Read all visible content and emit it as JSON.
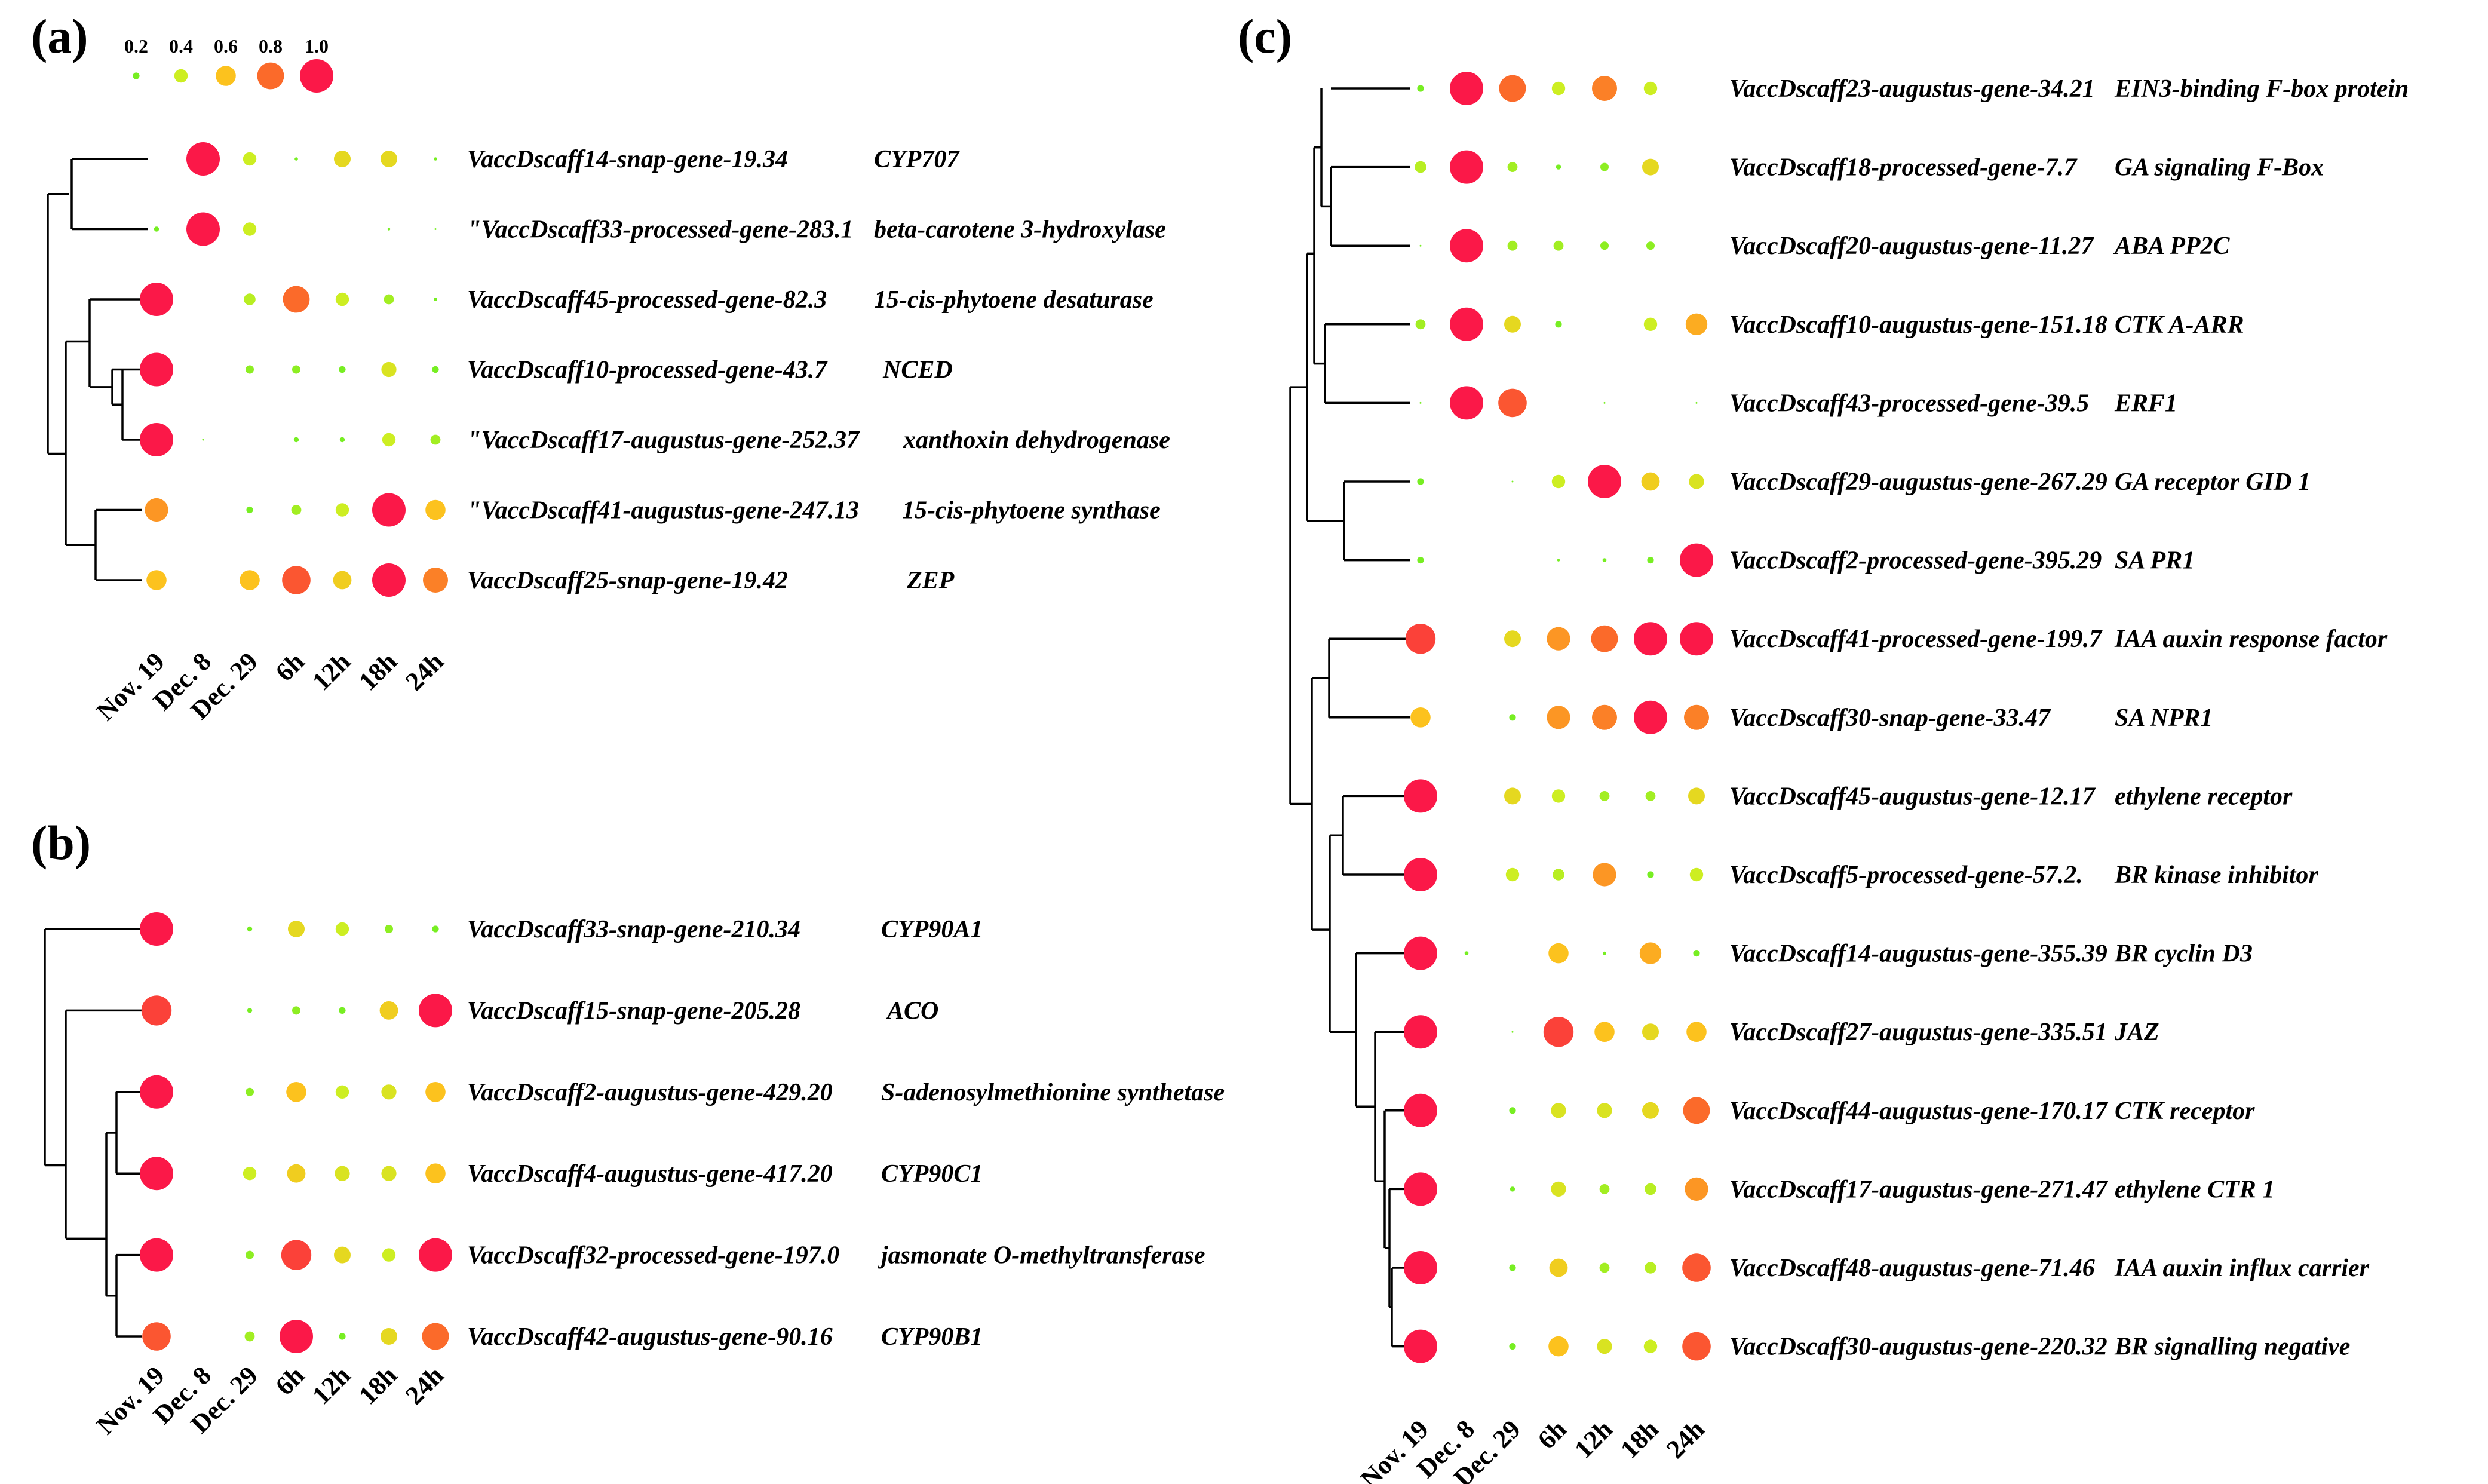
{
  "chart_data": [
    {
      "type": "bubble-heatmap",
      "panel_label": "(a)",
      "columns": [
        "Nov. 19",
        "Dec. 8",
        "Dec. 29",
        "6h",
        "12h",
        "18h",
        "24h"
      ],
      "legend": {
        "values": [
          0.2,
          0.4,
          0.6,
          0.8,
          1.0
        ],
        "labels": [
          "0.2",
          "0.4",
          "0.6",
          "0.8",
          "1.0"
        ]
      },
      "rows": [
        {
          "gene": "VaccDscaff14-snap-gene-19.34",
          "annotation": "CYP707",
          "values": [
            0,
            1.0,
            0.4,
            0.1,
            0.5,
            0.5,
            0.1
          ]
        },
        {
          "gene": "\"VaccDscaff33-processed-gene-283.1",
          "annotation": "beta-carotene 3-hydroxylase",
          "values": [
            0.15,
            1.0,
            0.4,
            0,
            0,
            0.08,
            0.04
          ]
        },
        {
          "gene": "VaccDscaff45-processed-gene-82.3",
          "annotation": "15-cis-phytoene desaturase",
          "values": [
            1.0,
            0,
            0.35,
            0.8,
            0.4,
            0.3,
            0.1
          ]
        },
        {
          "gene": "VaccDscaff10-processed-gene-43.7",
          "annotation": "NCED",
          "values": [
            1.0,
            0,
            0.25,
            0.25,
            0.2,
            0.45,
            0.2
          ]
        },
        {
          "gene": "\"VaccDscaff17-augustus-gene-252.37",
          "annotation": "xanthoxin dehydrogenase",
          "values": [
            1.0,
            0.05,
            0,
            0.15,
            0.15,
            0.4,
            0.3
          ]
        },
        {
          "gene": "\"VaccDscaff41-augustus-gene-247.13",
          "annotation": "15-cis-phytoene synthase",
          "values": [
            0.7,
            0,
            0.2,
            0.3,
            0.4,
            1.0,
            0.6
          ]
        },
        {
          "gene": "VaccDscaff25-snap-gene-19.42",
          "annotation": "ZEP",
          "values": [
            0.6,
            0,
            0.6,
            0.85,
            0.55,
            1.0,
            0.75
          ]
        }
      ]
    },
    {
      "type": "bubble-heatmap",
      "panel_label": "(b)",
      "columns": [
        "Nov. 19",
        "Dec. 8",
        "Dec. 29",
        "6h",
        "12h",
        "18h",
        "24h"
      ],
      "rows": [
        {
          "gene": "VaccDscaff33-snap-gene-210.34",
          "annotation": "CYP90A1",
          "values": [
            1.0,
            0,
            0.15,
            0.5,
            0.4,
            0.25,
            0.2
          ]
        },
        {
          "gene": "VaccDscaff15-snap-gene-205.28",
          "annotation": "ACO",
          "values": [
            0.9,
            0,
            0.15,
            0.25,
            0.2,
            0.55,
            1.0
          ]
        },
        {
          "gene": "VaccDscaff2-augustus-gene-429.20",
          "annotation": "S-adenosylmethionine synthetase",
          "values": [
            1.0,
            0,
            0.25,
            0.6,
            0.4,
            0.45,
            0.6
          ]
        },
        {
          "gene": "VaccDscaff4-augustus-gene-417.20",
          "annotation": "CYP90C1",
          "values": [
            1.0,
            0,
            0.4,
            0.55,
            0.45,
            0.45,
            0.6
          ]
        },
        {
          "gene": "VaccDscaff32-processed-gene-197.0",
          "annotation": "jasmonate O-methyltransferase",
          "values": [
            1.0,
            0,
            0.25,
            0.9,
            0.5,
            0.4,
            1.0
          ]
        },
        {
          "gene": "VaccDscaff42-augustus-gene-90.16",
          "annotation": "CYP90B1",
          "values": [
            0.85,
            0,
            0.3,
            1.0,
            0.2,
            0.5,
            0.8
          ]
        }
      ]
    },
    {
      "type": "bubble-heatmap",
      "panel_label": "(c)",
      "columns": [
        "Nov. 19",
        "Dec. 8",
        "Dec. 29",
        "6h",
        "12h",
        "18h",
        "24h"
      ],
      "rows": [
        {
          "gene": "VaccDscaff23-augustus-gene-34.21",
          "annotation": "EIN3-binding F-box protein",
          "values": [
            0.2,
            1.0,
            0.8,
            0.4,
            0.75,
            0.4,
            0
          ]
        },
        {
          "gene": "VaccDscaff18-processed-gene-7.7",
          "annotation": "GA signaling F-Box",
          "values": [
            0.35,
            1.0,
            0.3,
            0.15,
            0.25,
            0.5,
            0
          ]
        },
        {
          "gene": "VaccDscaff20-augustus-gene-11.27",
          "annotation": "ABA PP2C",
          "values": [
            0.04,
            1.0,
            0.3,
            0.3,
            0.25,
            0.25,
            0
          ]
        },
        {
          "gene": "VaccDscaff10-augustus-gene-151.18",
          "annotation": "CTK A-ARR",
          "values": [
            0.3,
            1.0,
            0.5,
            0.2,
            0,
            0.4,
            0.65
          ]
        },
        {
          "gene": "VaccDscaff43-processed-gene-39.5",
          "annotation": "ERF1",
          "values": [
            0.03,
            1.0,
            0.85,
            0,
            0.02,
            0,
            0.02
          ]
        },
        {
          "gene": "VaccDscaff29-augustus-gene-267.29",
          "annotation": "GA  receptor GID 1",
          "values": [
            0.2,
            0,
            0.02,
            0.4,
            1.0,
            0.55,
            0.45
          ]
        },
        {
          "gene": "VaccDscaff2-processed-gene-395.29",
          "annotation": "SA PR1",
          "values": [
            0.2,
            0,
            0,
            0.08,
            0.12,
            0.2,
            1.0
          ]
        },
        {
          "gene": "VaccDscaff41-processed-gene-199.7",
          "annotation": "IAA auxin response factor",
          "values": [
            0.9,
            0,
            0.5,
            0.7,
            0.8,
            1.0,
            1.0
          ]
        },
        {
          "gene": "VaccDscaff30-snap-gene-33.47",
          "annotation": "SA NPR1",
          "values": [
            0.6,
            0,
            0.2,
            0.7,
            0.75,
            1.0,
            0.75
          ]
        },
        {
          "gene": "VaccDscaff45-augustus-gene-12.17",
          "annotation": "ethylene  receptor",
          "values": [
            1.0,
            0,
            0.5,
            0.4,
            0.3,
            0.3,
            0.5
          ]
        },
        {
          "gene": "VaccDscaff5-processed-gene-57.2.",
          "annotation": "BR  kinase inhibitor",
          "values": [
            1.0,
            0,
            0.4,
            0.35,
            0.7,
            0.2,
            0.4
          ]
        },
        {
          "gene": "VaccDscaff14-augustus-gene-355.39",
          "annotation": "BR cyclin D3",
          "values": [
            1.0,
            0.12,
            0,
            0.6,
            0.1,
            0.65,
            0.2
          ]
        },
        {
          "gene": "VaccDscaff27-augustus-gene-335.51",
          "annotation": "JAZ",
          "values": [
            1.0,
            0,
            0.04,
            0.9,
            0.6,
            0.5,
            0.6
          ]
        },
        {
          "gene": "VaccDscaff44-augustus-gene-170.17",
          "annotation": "CTK receptor",
          "values": [
            1.0,
            0,
            0.2,
            0.45,
            0.45,
            0.5,
            0.8
          ]
        },
        {
          "gene": "VaccDscaff17-augustus-gene-271.47",
          "annotation": "ethylene CTR 1",
          "values": [
            1.0,
            0,
            0.15,
            0.45,
            0.3,
            0.35,
            0.7
          ]
        },
        {
          "gene": "VaccDscaff48-augustus-gene-71.46",
          "annotation": "IAA  auxin influx carrier",
          "values": [
            1.0,
            0,
            0.2,
            0.55,
            0.3,
            0.35,
            0.85
          ]
        },
        {
          "gene": "VaccDscaff30-augustus-gene-220.32",
          "annotation": "BR signalling negative",
          "values": [
            1.0,
            0,
            0.2,
            0.6,
            0.45,
            0.4,
            0.85
          ]
        }
      ]
    }
  ],
  "colors": {
    "scale": [
      "#77ee22",
      "#cdee22",
      "#fcc21e",
      "#fb6a2a",
      "#fb1848"
    ],
    "scale_stops": [
      0.2,
      0.4,
      0.6,
      0.8,
      1.0
    ]
  }
}
